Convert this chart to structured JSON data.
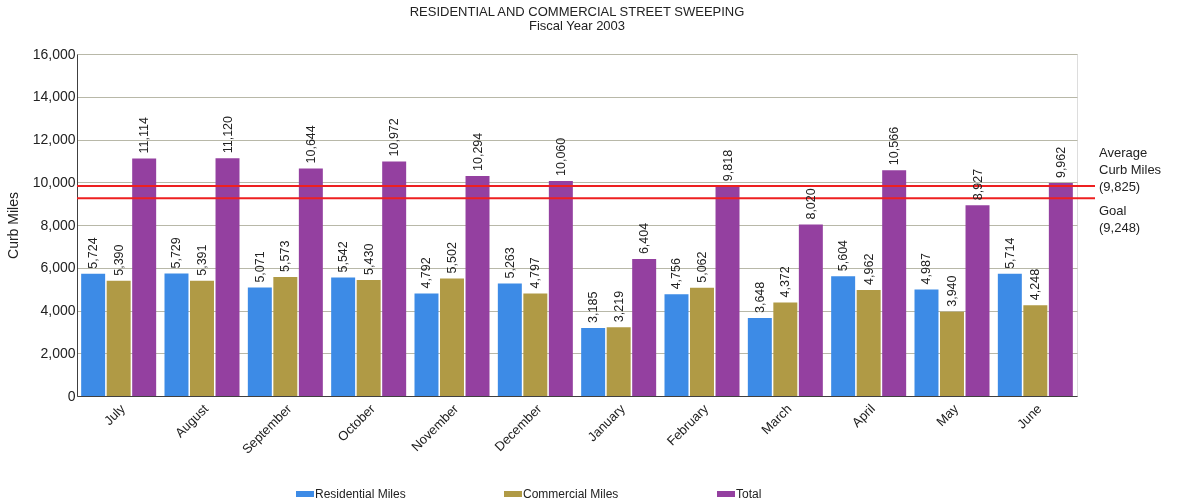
{
  "chart_data": {
    "type": "bar",
    "title": "RESIDENTIAL AND COMMERCIAL STREET SWEEPING",
    "subtitle": "Fiscal Year 2003",
    "ylabel": "Curb Miles",
    "categories": [
      "July",
      "August",
      "September",
      "October",
      "November",
      "December",
      "January",
      "February",
      "March",
      "April",
      "May",
      "June"
    ],
    "series": [
      {
        "name": "Residential Miles",
        "color": "#3d8be6",
        "values": [
          5724,
          5729,
          5071,
          5542,
          4792,
          5263,
          3185,
          4756,
          3648,
          5604,
          4987,
          5714
        ],
        "value_labels": [
          "5,724",
          "5,729",
          "5,071",
          "5,542",
          "4,792",
          "5,263",
          "3,185",
          "4,756",
          "3,648",
          "5,604",
          "4,987",
          "5,714"
        ]
      },
      {
        "name": "Commercial Miles",
        "color": "#b09a45",
        "values": [
          5390,
          5391,
          5573,
          5430,
          5502,
          4797,
          3219,
          5062,
          4372,
          4962,
          3940,
          4248
        ],
        "value_labels": [
          "5,390",
          "5,391",
          "5,573",
          "5,430",
          "5,502",
          "4,797",
          "3,219",
          "5,062",
          "4,372",
          "4,962",
          "3,940",
          "4,248"
        ]
      },
      {
        "name": "Total",
        "color": "#9440a0",
        "values": [
          11114,
          11120,
          10644,
          10972,
          10294,
          10060,
          6404,
          9818,
          8020,
          10566,
          8927,
          9962
        ],
        "value_labels": [
          "11,114",
          "11,120",
          "10,644",
          "10,972",
          "10,294",
          "10,060",
          "6,404",
          "9,818",
          "8,020",
          "10,566",
          "8,927",
          "9,962"
        ]
      }
    ],
    "ylim": [
      0,
      16000
    ],
    "yticks": [
      {
        "value": 0,
        "label": "0"
      },
      {
        "value": 2000,
        "label": "2,000"
      },
      {
        "value": 4000,
        "label": "4,000"
      },
      {
        "value": 6000,
        "label": "6,000"
      },
      {
        "value": 8000,
        "label": "8,000"
      },
      {
        "value": 10000,
        "label": "10,000"
      },
      {
        "value": 12000,
        "label": "12,000"
      },
      {
        "value": 14000,
        "label": "14,000"
      },
      {
        "value": 16000,
        "label": "16,000"
      }
    ],
    "ref_lines": [
      {
        "axis": "y",
        "value": 9825,
        "label": "Average\nCurb Miles\n(9,825)",
        "color": "#ee2020",
        "line_style": "solid"
      },
      {
        "axis": "y",
        "value": 9248,
        "label": "Goal\n(9,248)",
        "color": "#ee2020",
        "line_style": "solid"
      }
    ],
    "grid": "y",
    "legend": "bottom"
  }
}
